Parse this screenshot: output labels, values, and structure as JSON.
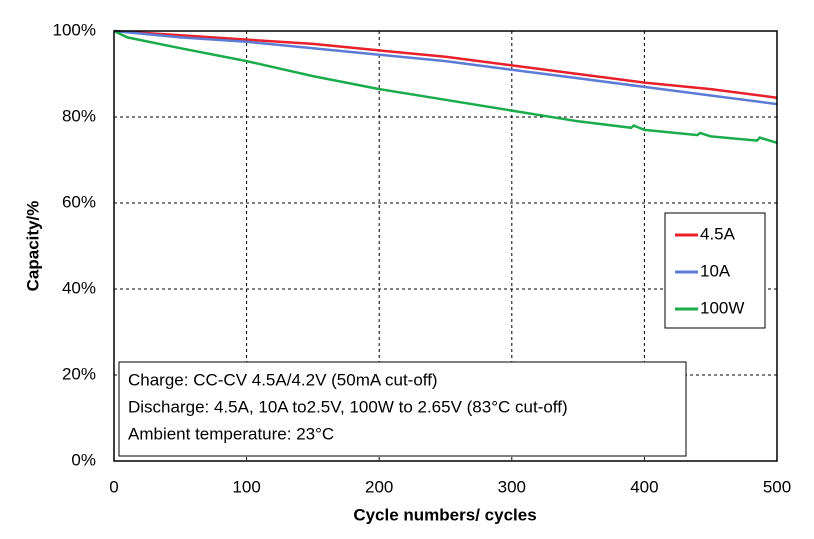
{
  "chart_data": {
    "type": "line",
    "xlabel": "Cycle numbers/ cycles",
    "ylabel": "Capacity/%",
    "xlim": [
      0,
      500
    ],
    "xticks": [
      0,
      100,
      200,
      300,
      400,
      500
    ],
    "ylim": [
      0,
      100
    ],
    "yticks": [
      {
        "value": 0,
        "label": "0%"
      },
      {
        "value": 20,
        "label": "20%"
      },
      {
        "value": 40,
        "label": "40%"
      },
      {
        "value": 60,
        "label": "60%"
      },
      {
        "value": 80,
        "label": "80%"
      },
      {
        "value": 100,
        "label": "100%"
      }
    ],
    "grid": true,
    "legend": "right",
    "annotations": [
      "Charge: CC-CV 4.5A/4.2V (50mA cut-off)",
      "Discharge: 4.5A, 10A to2.5V, 100W to 2.65V (83°C cut-off)",
      "Ambient temperature: 23°C"
    ],
    "series": [
      {
        "name": "4.5A",
        "color": "#e8202a",
        "x": [
          0,
          50,
          100,
          150,
          200,
          250,
          300,
          350,
          400,
          450,
          500
        ],
        "values": [
          100,
          99,
          98,
          97,
          95.5,
          94,
          92,
          90,
          88,
          86.5,
          84.5
        ]
      },
      {
        "name": "10A",
        "color": "#5b7bd5",
        "x": [
          0,
          50,
          100,
          150,
          200,
          250,
          300,
          350,
          400,
          450,
          500
        ],
        "values": [
          100,
          98.5,
          97.5,
          96,
          94.5,
          93,
          91,
          89,
          87,
          85,
          83
        ]
      },
      {
        "name": "100W",
        "color": "#1aab4b",
        "x": [
          0,
          10,
          50,
          100,
          150,
          200,
          250,
          300,
          350,
          390,
          392,
          400,
          440,
          442,
          450,
          485,
          487,
          500
        ],
        "values": [
          100,
          98.5,
          96,
          93,
          89.5,
          86.5,
          84,
          81.5,
          79,
          77.5,
          78,
          77,
          75.8,
          76.3,
          75.5,
          74.5,
          75.2,
          74
        ]
      }
    ]
  }
}
